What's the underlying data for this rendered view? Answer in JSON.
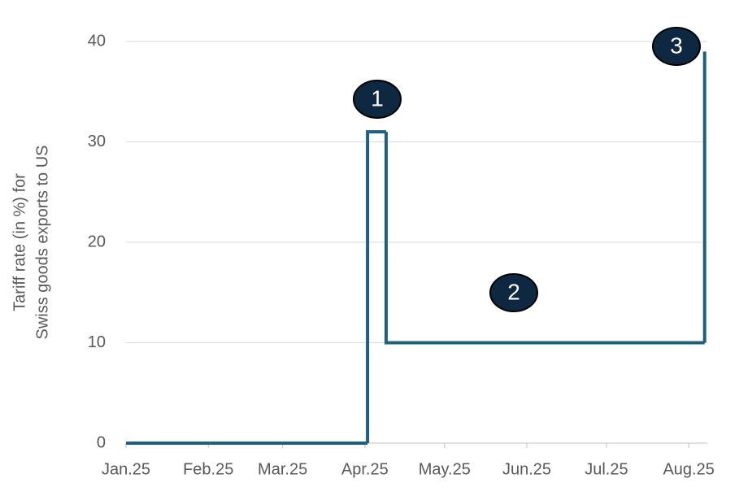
{
  "chart_data": {
    "type": "step",
    "y_label": [
      "Tariff rate (in %) for",
      "Swiss goods exports to US"
    ],
    "x": [
      0,
      91,
      98,
      218
    ],
    "series": [
      {
        "color": "#1f5f7f",
        "values": [
          0,
          31,
          10,
          39
        ]
      }
    ],
    "xlim": [
      0,
      219
    ],
    "xticks": [
      {
        "value": 0,
        "label": "Jan.25"
      },
      {
        "value": 31,
        "label": "Feb.25"
      },
      {
        "value": 59,
        "label": "Mar.25"
      },
      {
        "value": 90,
        "label": "Apr.25"
      },
      {
        "value": 120,
        "label": "May.25"
      },
      {
        "value": 151,
        "label": "Jun.25"
      },
      {
        "value": 181,
        "label": "Jul.25"
      },
      {
        "value": 212,
        "label": "Aug.25"
      }
    ],
    "ylim": [
      0,
      40
    ],
    "yticks": [
      0,
      10,
      20,
      30,
      40
    ],
    "grid": true,
    "annotations": [
      "1",
      "2",
      "3"
    ]
  }
}
